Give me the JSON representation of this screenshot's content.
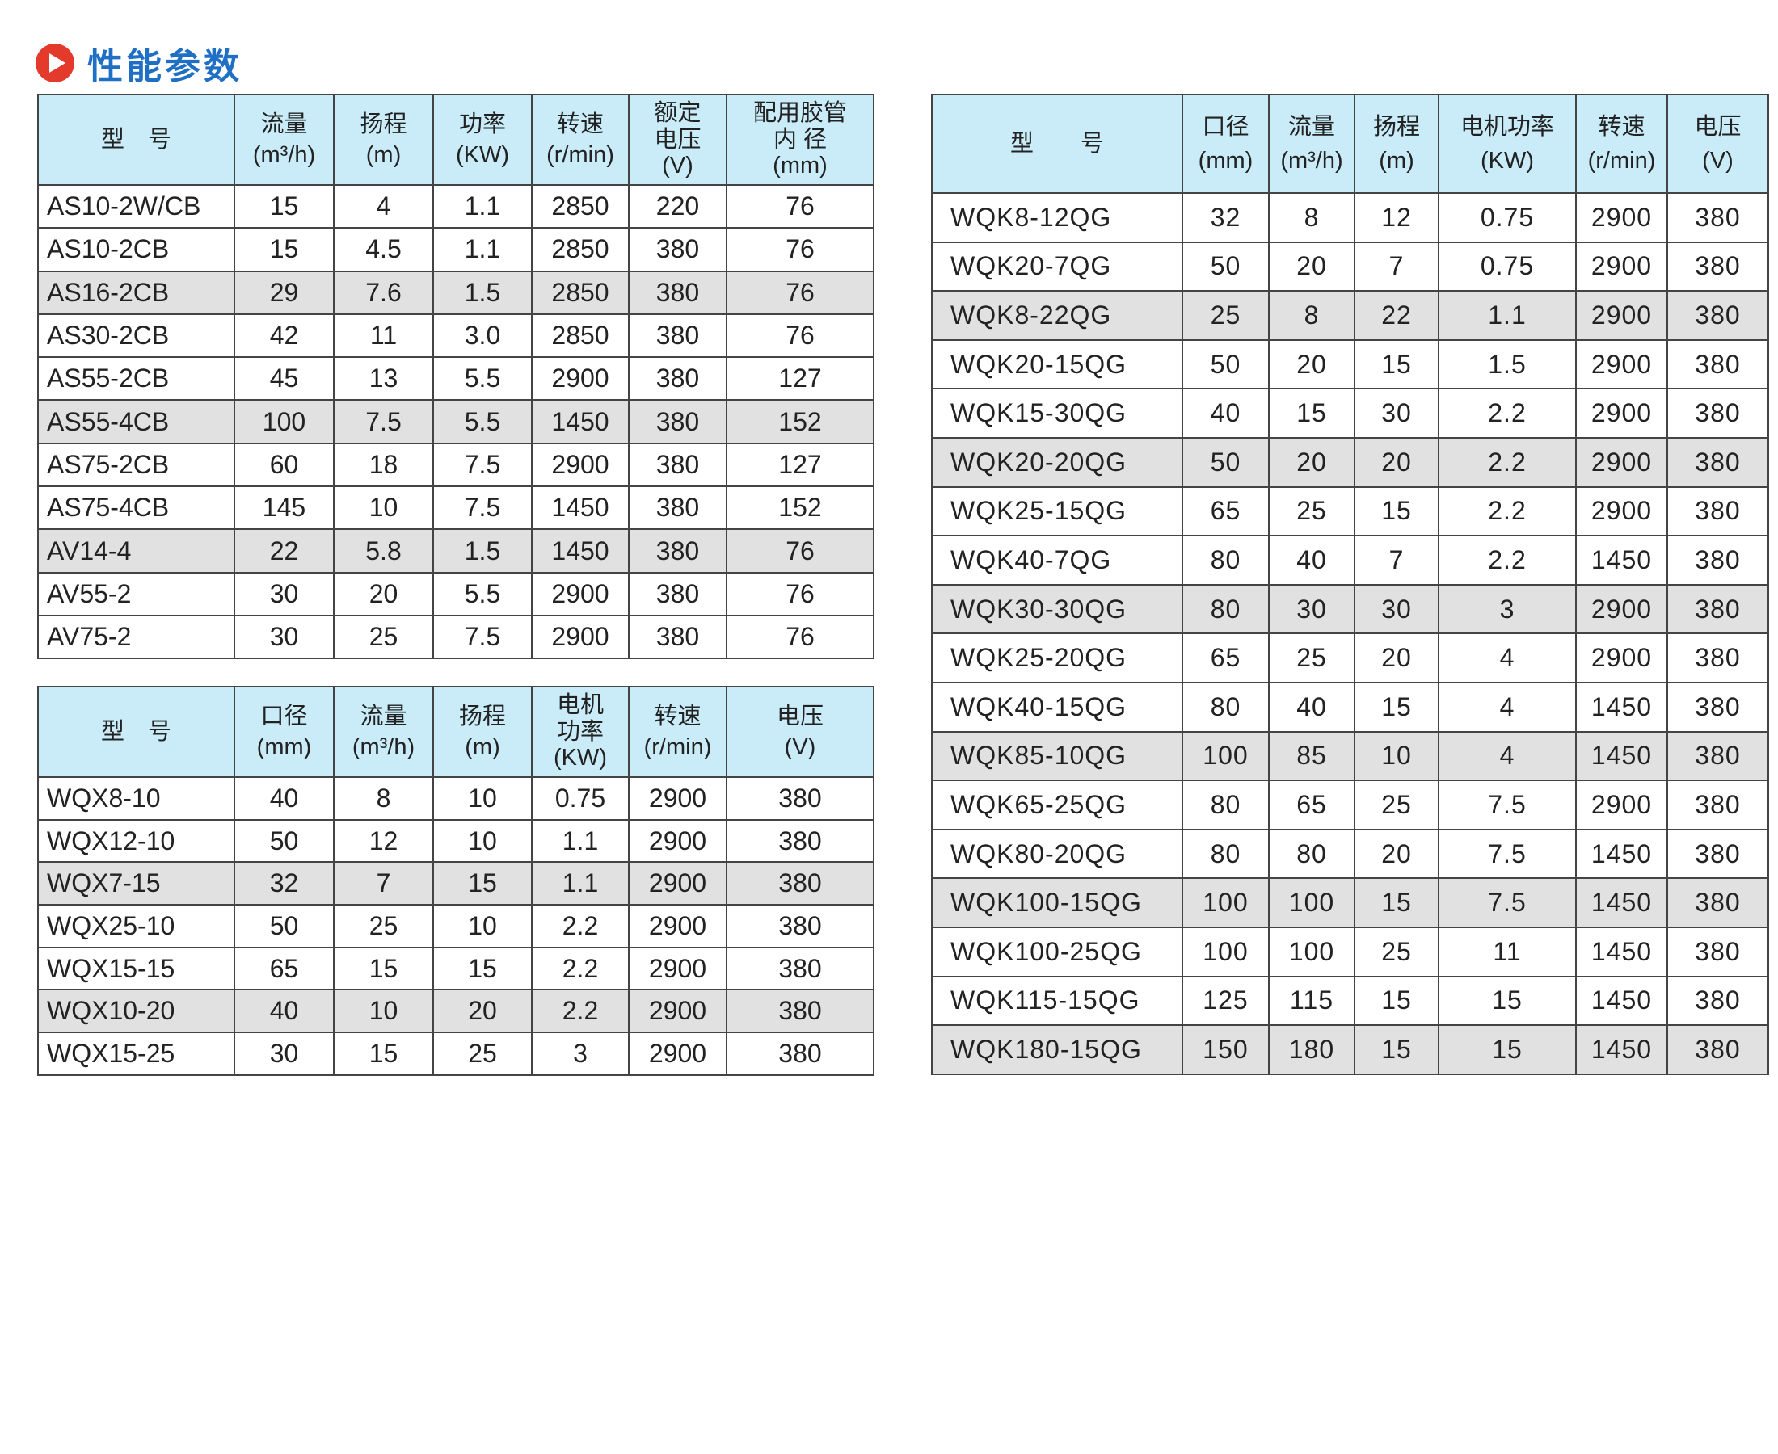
{
  "title": {
    "text": "性能参数",
    "icon": "play-circle-icon",
    "icon_color": "#e33a2c",
    "text_color": "#1f6fc4"
  },
  "colors": {
    "header_bg": "#c9ecf8",
    "shaded_row_bg": "#e1e1e1"
  },
  "table_as": {
    "headers": [
      [
        "型　号"
      ],
      [
        "流量",
        "(m³/h)"
      ],
      [
        "扬程",
        "(m)"
      ],
      [
        "功率",
        "(KW)"
      ],
      [
        "转速",
        "(r/min)"
      ],
      [
        "额定",
        "电压",
        "(V)"
      ],
      [
        "配用胶管",
        "内 径",
        "(mm)"
      ]
    ],
    "shaded_rows": [
      2,
      5,
      8
    ],
    "rows": [
      [
        "AS10-2W/CB",
        "15",
        "4",
        "1.1",
        "2850",
        "220",
        "76"
      ],
      [
        "AS10-2CB",
        "15",
        "4.5",
        "1.1",
        "2850",
        "380",
        "76"
      ],
      [
        "AS16-2CB",
        "29",
        "7.6",
        "1.5",
        "2850",
        "380",
        "76"
      ],
      [
        "AS30-2CB",
        "42",
        "11",
        "3.0",
        "2850",
        "380",
        "76"
      ],
      [
        "AS55-2CB",
        "45",
        "13",
        "5.5",
        "2900",
        "380",
        "127"
      ],
      [
        "AS55-4CB",
        "100",
        "7.5",
        "5.5",
        "1450",
        "380",
        "152"
      ],
      [
        "AS75-2CB",
        "60",
        "18",
        "7.5",
        "2900",
        "380",
        "127"
      ],
      [
        "AS75-4CB",
        "145",
        "10",
        "7.5",
        "1450",
        "380",
        "152"
      ],
      [
        "AV14-4",
        "22",
        "5.8",
        "1.5",
        "1450",
        "380",
        "76"
      ],
      [
        "AV55-2",
        "30",
        "20",
        "5.5",
        "2900",
        "380",
        "76"
      ],
      [
        "AV75-2",
        "30",
        "25",
        "7.5",
        "2900",
        "380",
        "76"
      ]
    ]
  },
  "table_wqx": {
    "headers": [
      [
        "型　号"
      ],
      [
        "口径",
        "(mm)"
      ],
      [
        "流量",
        "(m³/h)"
      ],
      [
        "扬程",
        "(m)"
      ],
      [
        "电机",
        "功率",
        "(KW)"
      ],
      [
        "转速",
        "(r/min)"
      ],
      [
        "电压",
        "(V)"
      ]
    ],
    "shaded_rows": [
      2,
      5
    ],
    "rows": [
      [
        "WQX8-10",
        "40",
        "8",
        "10",
        "0.75",
        "2900",
        "380"
      ],
      [
        "WQX12-10",
        "50",
        "12",
        "10",
        "1.1",
        "2900",
        "380"
      ],
      [
        "WQX7-15",
        "32",
        "7",
        "15",
        "1.1",
        "2900",
        "380"
      ],
      [
        "WQX25-10",
        "50",
        "25",
        "10",
        "2.2",
        "2900",
        "380"
      ],
      [
        "WQX15-15",
        "65",
        "15",
        "15",
        "2.2",
        "2900",
        "380"
      ],
      [
        "WQX10-20",
        "40",
        "10",
        "20",
        "2.2",
        "2900",
        "380"
      ],
      [
        "WQX15-25",
        "30",
        "15",
        "25",
        "3",
        "2900",
        "380"
      ]
    ]
  },
  "table_wqk": {
    "headers": [
      [
        "型　　号"
      ],
      [
        "口径",
        "(mm)"
      ],
      [
        "流量",
        "(m³/h)"
      ],
      [
        "扬程",
        "(m)"
      ],
      [
        "电机功率",
        "(KW)"
      ],
      [
        "转速",
        "(r/min)"
      ],
      [
        "电压",
        "(V)"
      ]
    ],
    "shaded_rows": [
      2,
      5,
      8,
      11,
      14,
      17
    ],
    "rows": [
      [
        "WQK8-12QG",
        "32",
        "8",
        "12",
        "0.75",
        "2900",
        "380"
      ],
      [
        "WQK20-7QG",
        "50",
        "20",
        "7",
        "0.75",
        "2900",
        "380"
      ],
      [
        "WQK8-22QG",
        "25",
        "8",
        "22",
        "1.1",
        "2900",
        "380"
      ],
      [
        "WQK20-15QG",
        "50",
        "20",
        "15",
        "1.5",
        "2900",
        "380"
      ],
      [
        "WQK15-30QG",
        "40",
        "15",
        "30",
        "2.2",
        "2900",
        "380"
      ],
      [
        "WQK20-20QG",
        "50",
        "20",
        "20",
        "2.2",
        "2900",
        "380"
      ],
      [
        "WQK25-15QG",
        "65",
        "25",
        "15",
        "2.2",
        "2900",
        "380"
      ],
      [
        "WQK40-7QG",
        "80",
        "40",
        "7",
        "2.2",
        "1450",
        "380"
      ],
      [
        "WQK30-30QG",
        "80",
        "30",
        "30",
        "3",
        "2900",
        "380"
      ],
      [
        "WQK25-20QG",
        "65",
        "25",
        "20",
        "4",
        "2900",
        "380"
      ],
      [
        "WQK40-15QG",
        "80",
        "40",
        "15",
        "4",
        "1450",
        "380"
      ],
      [
        "WQK85-10QG",
        "100",
        "85",
        "10",
        "4",
        "1450",
        "380"
      ],
      [
        "WQK65-25QG",
        "80",
        "65",
        "25",
        "7.5",
        "2900",
        "380"
      ],
      [
        "WQK80-20QG",
        "80",
        "80",
        "20",
        "7.5",
        "1450",
        "380"
      ],
      [
        "WQK100-15QG",
        "100",
        "100",
        "15",
        "7.5",
        "1450",
        "380"
      ],
      [
        "WQK100-25QG",
        "100",
        "100",
        "25",
        "11",
        "1450",
        "380"
      ],
      [
        "WQK115-15QG",
        "125",
        "115",
        "15",
        "15",
        "1450",
        "380"
      ],
      [
        "WQK180-15QG",
        "150",
        "180",
        "15",
        "15",
        "1450",
        "380"
      ]
    ]
  }
}
